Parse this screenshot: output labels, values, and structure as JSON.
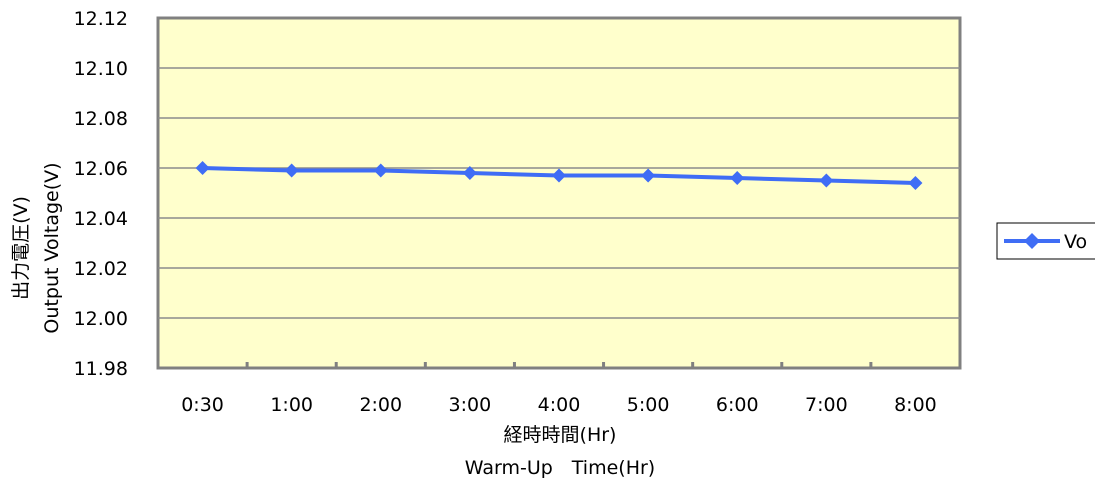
{
  "chart_data": {
    "type": "line",
    "title": "",
    "categories": [
      "0:30",
      "1:00",
      "2:00",
      "3:00",
      "4:00",
      "5:00",
      "6:00",
      "7:00",
      "8:00"
    ],
    "series": [
      {
        "name": "Vo",
        "values": [
          12.06,
          12.059,
          12.059,
          12.058,
          12.057,
          12.057,
          12.056,
          12.055,
          12.054
        ],
        "color": "#3f6df5",
        "marker": "diamond"
      }
    ],
    "xlabel": [
      "経時時間(Hr)",
      "Warm-Up　Time(Hr)"
    ],
    "ylabel": [
      "出力電圧(V)",
      "Output Voltage(V)"
    ],
    "ylim": [
      11.98,
      12.12
    ],
    "y_ticks": [
      "11.98",
      "12.00",
      "12.02",
      "12.04",
      "12.06",
      "12.08",
      "12.10",
      "12.12"
    ],
    "grid": true,
    "plot_background": "#ffffcc",
    "grid_color": "#8c8c8c",
    "legend": "right"
  }
}
